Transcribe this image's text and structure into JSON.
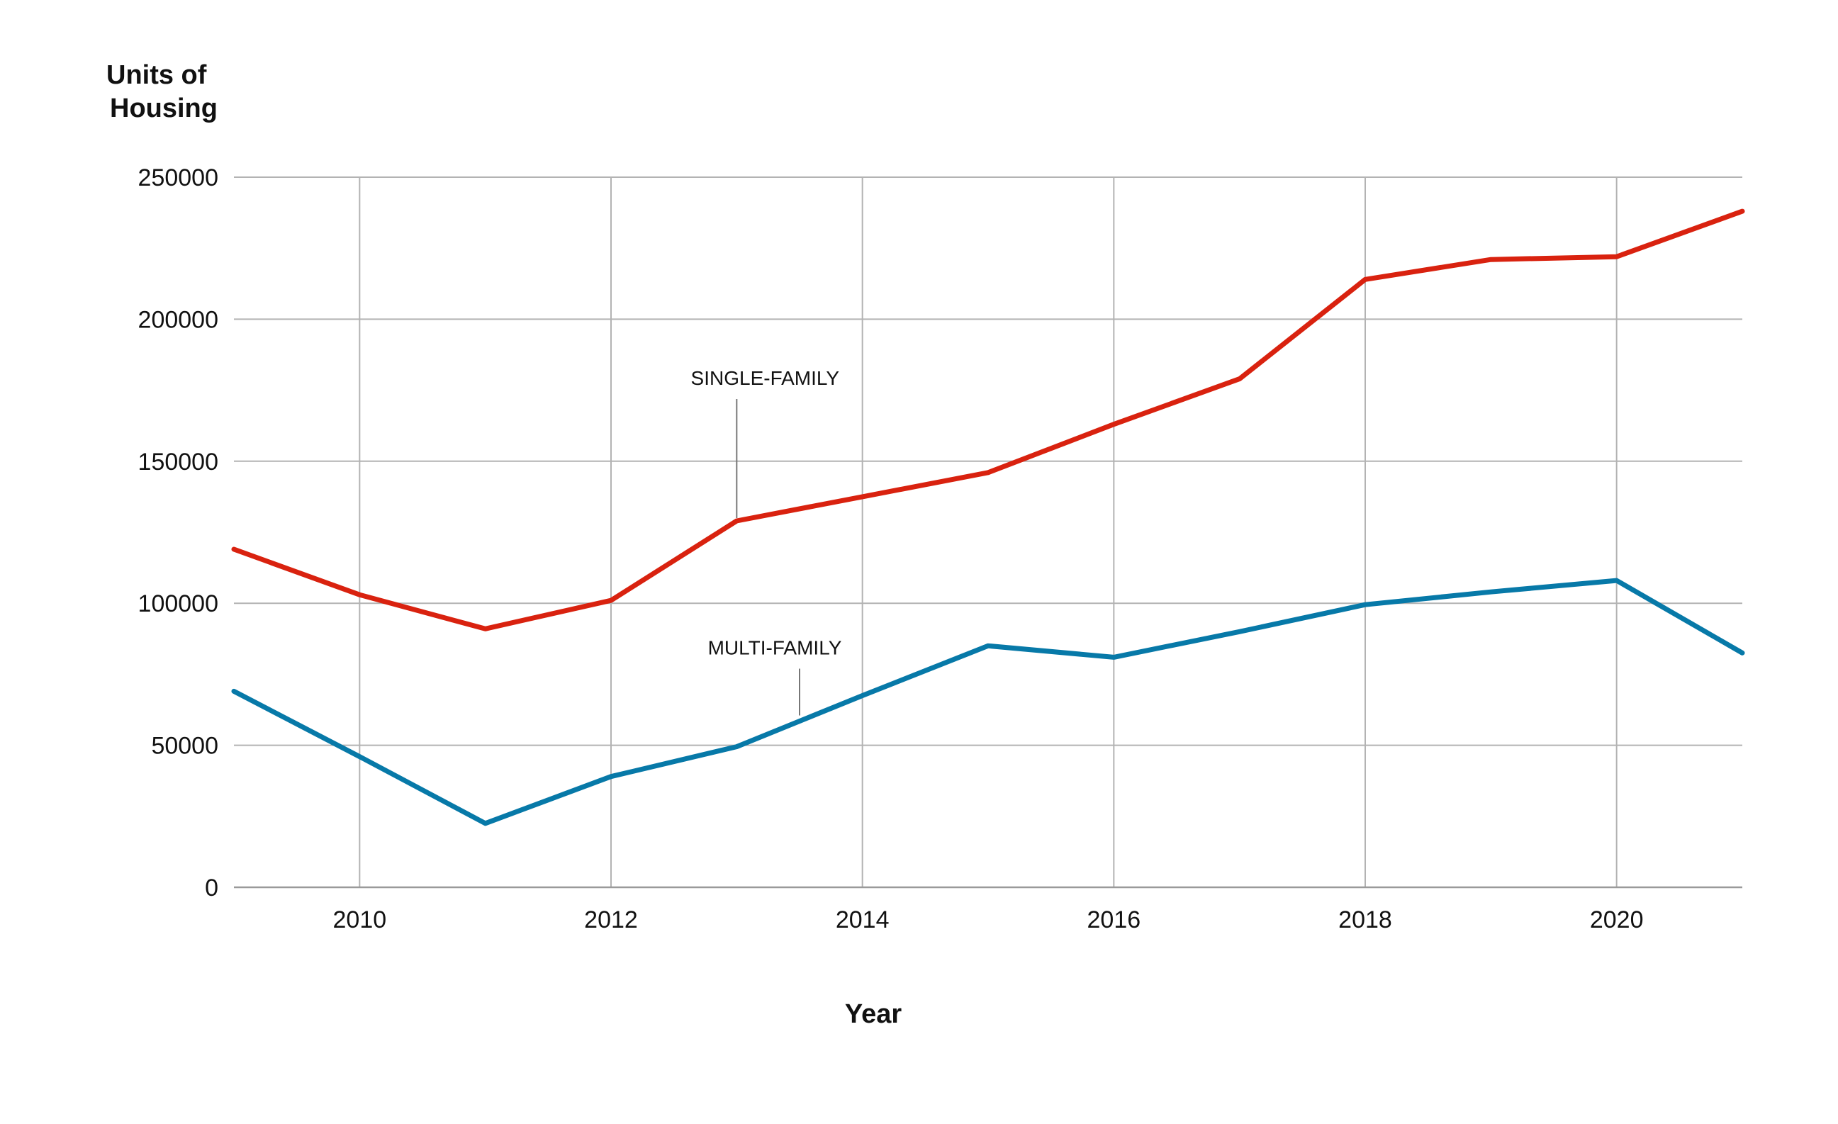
{
  "chart_data": {
    "type": "line",
    "title": "",
    "ylabel_lines": [
      "Units of",
      "Housing"
    ],
    "xlabel": "Year",
    "xlim": [
      2009,
      2021
    ],
    "ylim": [
      0,
      250000
    ],
    "x_ticks": [
      2010,
      2012,
      2014,
      2016,
      2018,
      2020
    ],
    "y_ticks": [
      0,
      50000,
      100000,
      150000,
      200000,
      250000
    ],
    "grid": true,
    "legend": "none (series labeled directly with callouts)",
    "x": [
      2009,
      2010,
      2011,
      2012,
      2013,
      2014,
      2015,
      2016,
      2017,
      2018,
      2019,
      2020,
      2021
    ],
    "series": [
      {
        "name": "SINGLE-FAMILY",
        "color": "#d9220f",
        "values": [
          119000,
          103000,
          91000,
          101000,
          129000,
          137500,
          146000,
          163000,
          179000,
          214000,
          221000,
          222000,
          238000
        ],
        "label_anchor_x": 2013,
        "label_anchor_y": 129000
      },
      {
        "name": "MULTI-FAMILY",
        "color": "#0779a8",
        "values": [
          69000,
          46000,
          22500,
          39000,
          49500,
          67500,
          85000,
          81000,
          90000,
          99500,
          104000,
          108000,
          82500
        ],
        "label_anchor_x": 2013.5,
        "label_anchor_y": 59500
      }
    ]
  }
}
